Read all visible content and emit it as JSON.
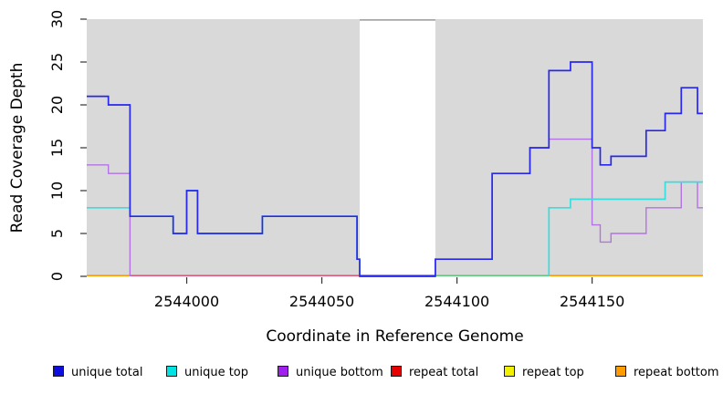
{
  "chart_data": {
    "type": "line",
    "subtype": "step-coverage-plot",
    "title": "",
    "xlabel": "Coordinate in Reference Genome",
    "ylabel": "Read Coverage Depth",
    "xlim": [
      2543963,
      2544191
    ],
    "ylim": [
      0,
      30
    ],
    "xticks": [
      2544000,
      2544050,
      2544100,
      2544150
    ],
    "yticks": [
      0,
      5,
      10,
      15,
      20,
      25,
      30
    ],
    "grid": "off",
    "plot_background": "#d9d9d9",
    "mask_region": {
      "from": 2544064,
      "to": 2544092,
      "color": "#ffffff",
      "top_edge_color": "#969696"
    },
    "series": [
      {
        "name": "unique total",
        "legend_color": "#0d0de0",
        "line_color": "#2727ee",
        "line_width": 1.7,
        "skip_zero": false,
        "steps": [
          [
            2543963,
            21
          ],
          [
            2543971,
            20
          ],
          [
            2543979,
            7
          ],
          [
            2543995,
            5
          ],
          [
            2544000,
            10
          ],
          [
            2544004,
            5
          ],
          [
            2544028,
            7
          ],
          [
            2544063,
            2
          ],
          [
            2544064,
            0
          ],
          [
            2544092,
            2
          ],
          [
            2544113,
            12
          ],
          [
            2544127,
            15
          ],
          [
            2544134,
            24
          ],
          [
            2544142,
            25
          ],
          [
            2544150,
            15
          ],
          [
            2544153,
            13
          ],
          [
            2544157,
            14
          ],
          [
            2544170,
            17
          ],
          [
            2544177,
            19
          ],
          [
            2544183,
            22
          ],
          [
            2544189,
            19
          ]
        ]
      },
      {
        "name": "unique top",
        "legend_color": "#00e3e3",
        "line_color": "#38dede",
        "line_width": 1.7,
        "skip_zero": true,
        "steps": [
          [
            2543963,
            8
          ],
          [
            2543979,
            7
          ],
          [
            2543995,
            5
          ],
          [
            2544000,
            10
          ],
          [
            2544004,
            5
          ],
          [
            2544028,
            7
          ],
          [
            2544063,
            2
          ],
          [
            2544064,
            0
          ],
          [
            2544134,
            8
          ],
          [
            2544142,
            9
          ],
          [
            2544177,
            11
          ]
        ]
      },
      {
        "name": "unique bottom",
        "legend_color": "#a020f0",
        "line_color": "#b473e3",
        "line_width": 1.4,
        "skip_zero": true,
        "steps": [
          [
            2543963,
            13
          ],
          [
            2543971,
            12
          ],
          [
            2543979,
            0
          ],
          [
            2544092,
            2
          ],
          [
            2544113,
            12
          ],
          [
            2544127,
            15
          ],
          [
            2544134,
            16
          ],
          [
            2544150,
            6
          ],
          [
            2544153,
            4
          ],
          [
            2544157,
            5
          ],
          [
            2544170,
            8
          ],
          [
            2544183,
            11
          ],
          [
            2544189,
            8
          ]
        ]
      },
      {
        "name": "repeat total",
        "legend_color": "#e60000",
        "line_color": "#e60000",
        "line_width": 1.5,
        "skip_zero": true,
        "steps": [
          [
            2543963,
            0
          ]
        ]
      },
      {
        "name": "repeat top",
        "legend_color": "#f0f000",
        "line_color": "#f0f000",
        "line_width": 1.5,
        "skip_zero": true,
        "steps": [
          [
            2543963,
            0
          ]
        ]
      },
      {
        "name": "repeat bottom",
        "legend_color": "#ff9d00",
        "line_color": "#ff9d00",
        "line_width": 1.7,
        "skip_zero": true,
        "steps": [
          [
            2543963,
            0
          ]
        ]
      }
    ],
    "zero_line_segments": [
      {
        "from": 2543963,
        "to": 2543979,
        "color": "#ff9d00"
      },
      {
        "from": 2543979,
        "to": 2544064,
        "color": "#e05a7d"
      },
      {
        "from": 2544064,
        "to": 2544092,
        "color": "#3a3af0"
      },
      {
        "from": 2544092,
        "to": 2544134,
        "color": "#63c97e"
      },
      {
        "from": 2544134,
        "to": 2544191,
        "color": "#ff9d00"
      }
    ]
  }
}
